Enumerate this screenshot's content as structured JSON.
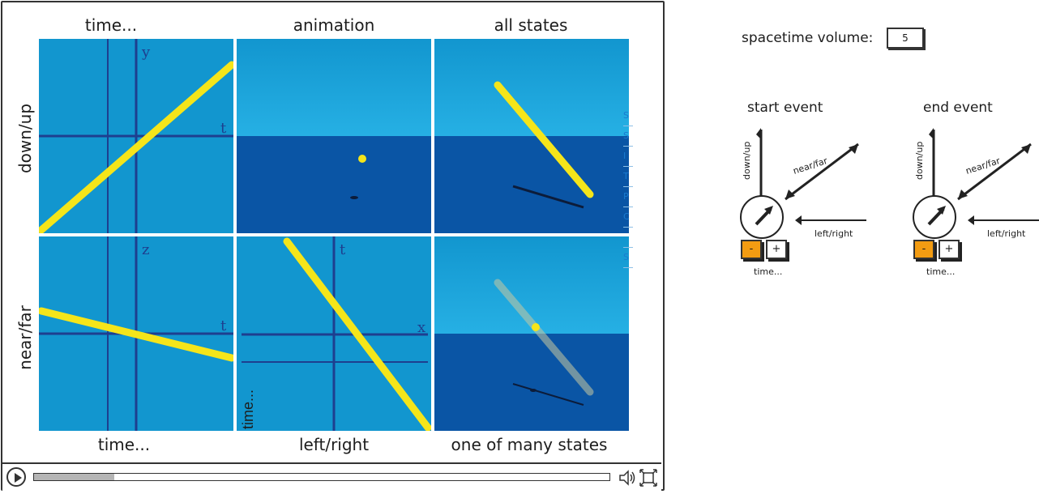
{
  "player": {
    "col_labels_top": [
      "time...",
      "animation",
      "all states"
    ],
    "col_labels_bottom": [
      "time...",
      "left/right",
      "one of many states"
    ],
    "row_labels": [
      "down/up",
      "near/far"
    ],
    "axes": {
      "p1": {
        "v": "y",
        "h": "t"
      },
      "p4": {
        "v": "z",
        "h": "t"
      },
      "p5": {
        "v": "t",
        "h": "x",
        "side": "time..."
      }
    },
    "progress_percent": 14,
    "ghost_items": [
      "S",
      "S",
      "I",
      "T",
      "P",
      "C",
      "",
      "S"
    ]
  },
  "side": {
    "volume_label": "spacetime volume:",
    "volume_value": "5",
    "start_event": {
      "title": "start event",
      "axis_v": "down/up",
      "axis_d": "near/far",
      "axis_h": "left/right",
      "minus": "-",
      "plus": "+",
      "time": "time..."
    },
    "end_event": {
      "title": "end event",
      "axis_v": "down/up",
      "axis_d": "near/far",
      "axis_h": "left/right",
      "minus": "-",
      "plus": "+",
      "time": "time..."
    }
  },
  "colors": {
    "sky": "#1296cf",
    "sky_light": "#26b0e4",
    "floor": "#0a55a5",
    "rod": "#f5e51a",
    "axis": "#1e3f8f",
    "orange": "#f39c12"
  }
}
